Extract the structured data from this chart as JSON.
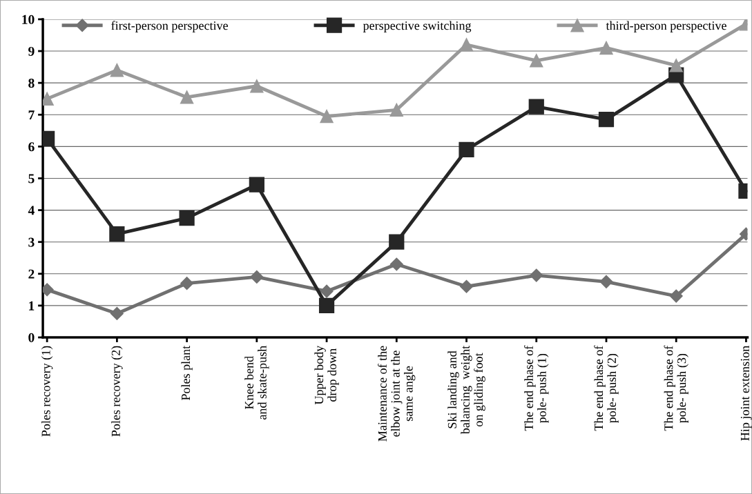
{
  "chart_data": {
    "type": "line",
    "categories": [
      "Poles recovery (1)",
      "Poles recovery (2)",
      "Poles plant",
      "Knee bend\nand skate-push",
      "Upper body\ndrop down",
      "Maintenance of the\nelbow joint at the\nsame angle",
      "Ski landing and\nbalancing  weight\non gliding foot",
      "The end phase of\npole- push (1)",
      "The end phase of\npole- push (2)",
      "The end phase of\npole- push (3)",
      "Hip joint extension"
    ],
    "series": [
      {
        "name": "first-person perspective",
        "color": "#707070",
        "marker": "diamond",
        "values": [
          1.5,
          0.75,
          1.7,
          1.9,
          1.45,
          2.3,
          1.6,
          1.95,
          1.75,
          1.3,
          3.25
        ]
      },
      {
        "name": "perspective switching",
        "color": "#262626",
        "marker": "square",
        "values": [
          6.25,
          3.25,
          3.75,
          4.8,
          1.0,
          3.0,
          5.9,
          7.25,
          6.85,
          8.25,
          4.6
        ]
      },
      {
        "name": "third-person perspective",
        "color": "#999999",
        "marker": "triangle",
        "values": [
          7.5,
          8.4,
          7.55,
          7.9,
          6.95,
          7.15,
          9.2,
          8.7,
          9.1,
          8.55,
          9.85
        ]
      }
    ],
    "ylim": [
      0,
      10
    ],
    "yticks": [
      0,
      1,
      2,
      3,
      4,
      5,
      6,
      7,
      8,
      9,
      10
    ],
    "grid": "y",
    "legend": "top",
    "line_style": "solid"
  }
}
